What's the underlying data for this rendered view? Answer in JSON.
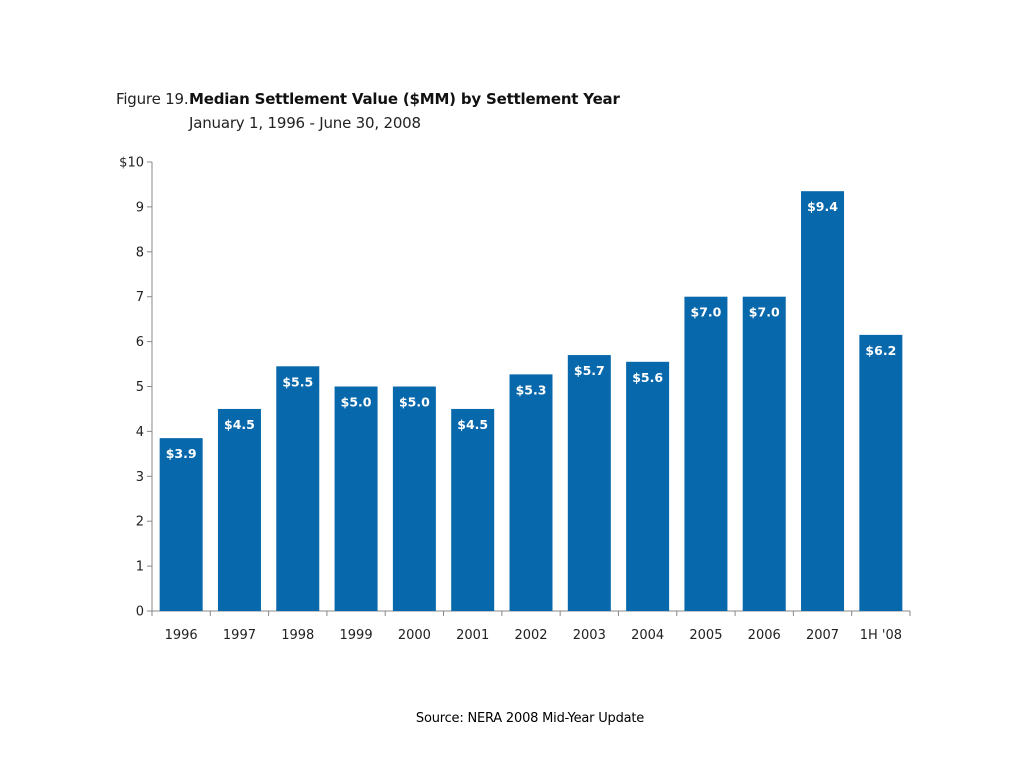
{
  "figure_label": "Figure 19.",
  "chart_data": {
    "type": "bar",
    "title": "Median Settlement Value ($MM) by Settlement Year",
    "subtitle": "January 1, 1996 - June 30, 2008",
    "categories": [
      "1996",
      "1997",
      "1998",
      "1999",
      "2000",
      "2001",
      "2002",
      "2003",
      "2004",
      "2005",
      "2006",
      "2007",
      "1H '08"
    ],
    "values": [
      3.85,
      4.5,
      5.45,
      5.0,
      5.0,
      4.5,
      5.27,
      5.7,
      5.55,
      7.0,
      7.0,
      9.35,
      6.15
    ],
    "data_labels": [
      "$3.9",
      "$4.5",
      "$5.5",
      "$5.0",
      "$5.0",
      "$4.5",
      "$5.3",
      "$5.7",
      "$5.6",
      "$7.0",
      "$7.0",
      "$9.4",
      "$6.2"
    ],
    "xlabel": "",
    "ylabel": "",
    "ylim": [
      0,
      10
    ],
    "yticks": [
      0,
      1,
      2,
      3,
      4,
      5,
      6,
      7,
      8,
      9,
      10
    ],
    "ytick_labels": [
      "0",
      "1",
      "2",
      "3",
      "4",
      "5",
      "6",
      "7",
      "8",
      "9",
      "$10"
    ],
    "grid": false,
    "legend": "none",
    "bar_color": "#0868AC",
    "label_color": "#ffffff"
  },
  "source": "Source: NERA 2008 Mid-Year Update"
}
